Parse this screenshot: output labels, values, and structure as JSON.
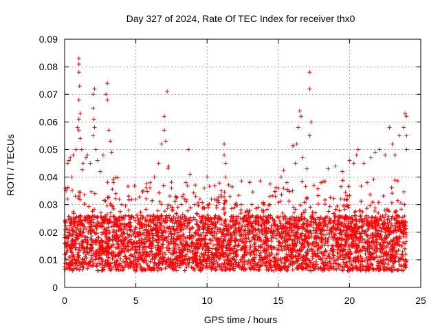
{
  "chart_data": {
    "type": "scatter",
    "title": "Day 327 of 2024, Rate Of TEC Index for receiver thx0",
    "xlabel": "GPS time / hours",
    "ylabel": "ROTI / TECUs",
    "xlim": [
      0,
      25
    ],
    "ylim": [
      0,
      0.09
    ],
    "x_ticks": [
      0,
      5,
      10,
      15,
      20,
      25
    ],
    "y_ticks": [
      0,
      0.01,
      0.02,
      0.03,
      0.04,
      0.05,
      0.06,
      0.07,
      0.08,
      0.09
    ],
    "x_tick_labels": [
      "0",
      "5",
      "10",
      "15",
      "20",
      "25"
    ],
    "y_tick_labels": [
      "0",
      "0.01",
      "0.02",
      "0.03",
      "0.04",
      "0.05",
      "0.06",
      "0.07",
      "0.08",
      "0.09"
    ],
    "grid": true,
    "marker": "+",
    "color": "#ff0000",
    "series": [
      {
        "points": [
          [
            0.0,
            0.012
          ],
          [
            0.1,
            0.035
          ],
          [
            0.2,
            0.045
          ],
          [
            0.3,
            0.046
          ],
          [
            0.4,
            0.047
          ],
          [
            0.5,
            0.04
          ],
          [
            0.6,
            0.048
          ],
          [
            0.8,
            0.05
          ],
          [
            0.9,
            0.058
          ],
          [
            1.0,
            0.083
          ],
          [
            1.0,
            0.081
          ],
          [
            1.0,
            0.078
          ],
          [
            1.05,
            0.073
          ],
          [
            1.0,
            0.068
          ],
          [
            1.0,
            0.061
          ],
          [
            1.0,
            0.057
          ],
          [
            1.1,
            0.054
          ],
          [
            1.1,
            0.063
          ],
          [
            1.2,
            0.05
          ],
          [
            1.3,
            0.045
          ],
          [
            1.5,
            0.047
          ],
          [
            1.6,
            0.048
          ],
          [
            1.8,
            0.045
          ],
          [
            2.0,
            0.07
          ],
          [
            2.1,
            0.072
          ],
          [
            2.0,
            0.065
          ],
          [
            2.05,
            0.061
          ],
          [
            2.1,
            0.058
          ],
          [
            2.0,
            0.055
          ],
          [
            2.2,
            0.05
          ],
          [
            2.3,
            0.046
          ],
          [
            2.5,
            0.042
          ],
          [
            2.7,
            0.048
          ],
          [
            2.9,
            0.07
          ],
          [
            3.0,
            0.074
          ],
          [
            3.0,
            0.068
          ],
          [
            3.1,
            0.057
          ],
          [
            3.2,
            0.053
          ],
          [
            3.3,
            0.049
          ],
          [
            3.4,
            0.039
          ],
          [
            3.6,
            0.034
          ],
          [
            4.0,
            0.03
          ],
          [
            4.5,
            0.028
          ],
          [
            5.0,
            0.032
          ],
          [
            5.5,
            0.035
          ],
          [
            6.0,
            0.038
          ],
          [
            6.3,
            0.04
          ],
          [
            6.6,
            0.045
          ],
          [
            6.8,
            0.052
          ],
          [
            7.0,
            0.062
          ],
          [
            7.0,
            0.057
          ],
          [
            7.1,
            0.053
          ],
          [
            7.2,
            0.071
          ],
          [
            7.3,
            0.044
          ],
          [
            7.5,
            0.036
          ],
          [
            7.8,
            0.033
          ],
          [
            8.2,
            0.03
          ],
          [
            8.5,
            0.038
          ],
          [
            8.7,
            0.05
          ],
          [
            8.8,
            0.041
          ],
          [
            9.2,
            0.033
          ],
          [
            9.5,
            0.032
          ],
          [
            9.8,
            0.036
          ],
          [
            10.0,
            0.04
          ],
          [
            10.3,
            0.032
          ],
          [
            10.7,
            0.032
          ],
          [
            11.0,
            0.035
          ],
          [
            11.2,
            0.052
          ],
          [
            11.2,
            0.048
          ],
          [
            11.3,
            0.045
          ],
          [
            11.3,
            0.04
          ],
          [
            11.6,
            0.033
          ],
          [
            12.0,
            0.03
          ],
          [
            12.4,
            0.03
          ],
          [
            12.8,
            0.028
          ],
          [
            13.2,
            0.026
          ],
          [
            13.6,
            0.029
          ],
          [
            14.0,
            0.03
          ],
          [
            14.4,
            0.03
          ],
          [
            14.8,
            0.033
          ],
          [
            15.0,
            0.036
          ],
          [
            15.2,
            0.04
          ],
          [
            15.6,
            0.038
          ],
          [
            16.0,
            0.035
          ],
          [
            16.2,
            0.045
          ],
          [
            16.3,
            0.052
          ],
          [
            16.4,
            0.058
          ],
          [
            16.5,
            0.064
          ],
          [
            16.6,
            0.062
          ],
          [
            16.7,
            0.047
          ],
          [
            17.0,
            0.043
          ],
          [
            17.2,
            0.078
          ],
          [
            17.2,
            0.072
          ],
          [
            17.3,
            0.06
          ],
          [
            17.2,
            0.055
          ],
          [
            17.5,
            0.037
          ],
          [
            18.0,
            0.038
          ],
          [
            18.5,
            0.043
          ],
          [
            19.0,
            0.044
          ],
          [
            19.5,
            0.042
          ],
          [
            20.0,
            0.046
          ],
          [
            20.3,
            0.045
          ],
          [
            20.5,
            0.048
          ],
          [
            20.6,
            0.05
          ],
          [
            21.0,
            0.045
          ],
          [
            21.5,
            0.047
          ],
          [
            21.8,
            0.049
          ],
          [
            22.1,
            0.05
          ],
          [
            22.5,
            0.048
          ],
          [
            22.8,
            0.058
          ],
          [
            23.0,
            0.052
          ],
          [
            23.2,
            0.048
          ],
          [
            23.5,
            0.055
          ],
          [
            23.8,
            0.058
          ],
          [
            23.9,
            0.063
          ],
          [
            24.0,
            0.062
          ],
          [
            24.0,
            0.055
          ],
          [
            24.0,
            0.05
          ]
        ]
      }
    ]
  }
}
